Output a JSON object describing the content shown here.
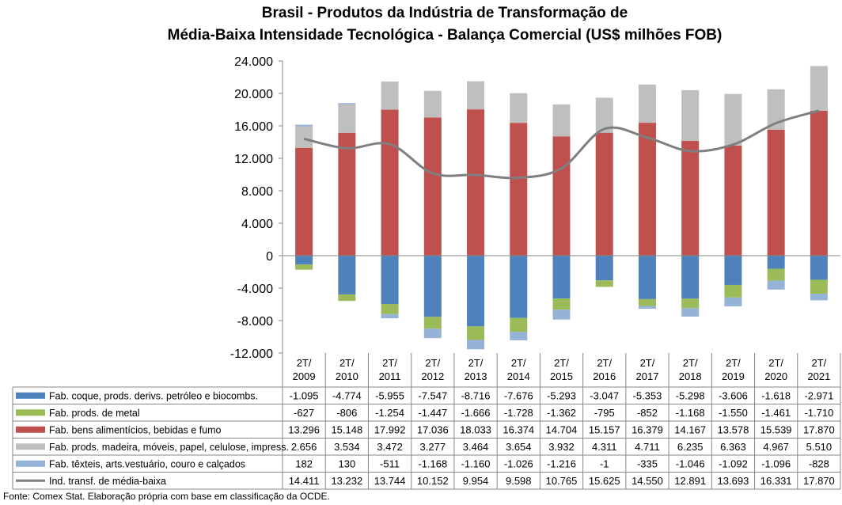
{
  "title_line1": "Brasil - Produtos da Indústria de Transformação de",
  "title_line2": "Média-Baixa Intensidade Tecnológica - Balança Comercial (US$ milhões FOB)",
  "source": "Fonte: Comex Stat. Elaboração própria com base em classificação da OCDE.",
  "chart_data": {
    "type": "bar",
    "stacked": true,
    "title": "Brasil - Produtos da Indústria de Transformação de Média-Baixa Intensidade Tecnológica - Balança Comercial (US$ milhões FOB)",
    "categories": [
      "2T/\n2009",
      "2T/\n2010",
      "2T/\n2011",
      "2T/\n2012",
      "2T/\n2013",
      "2T/\n2014",
      "2T/\n2015",
      "2T/\n2016",
      "2T/\n2017",
      "2T/\n2018",
      "2T/\n2019",
      "2T/\n2020",
      "2T/\n2021"
    ],
    "category_lines": [
      [
        "2T/",
        "2009"
      ],
      [
        "2T/",
        "2010"
      ],
      [
        "2T/",
        "2011"
      ],
      [
        "2T/",
        "2012"
      ],
      [
        "2T/",
        "2013"
      ],
      [
        "2T/",
        "2014"
      ],
      [
        "2T/",
        "2015"
      ],
      [
        "2T/",
        "2016"
      ],
      [
        "2T/",
        "2017"
      ],
      [
        "2T/",
        "2018"
      ],
      [
        "2T/",
        "2019"
      ],
      [
        "2T/",
        "2020"
      ],
      [
        "2T/",
        "2021"
      ]
    ],
    "ylim": [
      -12000,
      24000
    ],
    "yticks": [
      24000,
      20000,
      16000,
      12000,
      8000,
      4000,
      0,
      -4000,
      -8000,
      -12000
    ],
    "ytick_labels": [
      "24.000",
      "20.000",
      "16.000",
      "12.000",
      "8.000",
      "4.000",
      "0",
      "-4.000",
      "-8.000",
      "-12.000"
    ],
    "grid": false,
    "legend": "data-table-below",
    "series": [
      {
        "name": "Fab. coque, prods. derivs. petróleo e biocombs.",
        "kind": "bar",
        "color": "#4f81bd",
        "values": [
          -1095,
          -4774,
          -5955,
          -7547,
          -8716,
          -7676,
          -5293,
          -3047,
          -5353,
          -5298,
          -3606,
          -1618,
          -2971
        ],
        "labels": [
          "-1.095",
          "-4.774",
          "-5.955",
          "-7.547",
          "-8.716",
          "-7.676",
          "-5.293",
          "-3.047",
          "-5.353",
          "-5.298",
          "-3.606",
          "-1.618",
          "-2.971"
        ]
      },
      {
        "name": "Fab. prods. de metal",
        "kind": "bar",
        "color": "#9bbb59",
        "values": [
          -627,
          -806,
          -1254,
          -1447,
          -1666,
          -1728,
          -1362,
          -795,
          -852,
          -1168,
          -1550,
          -1461,
          -1710
        ],
        "labels": [
          "-627",
          "-806",
          "-1.254",
          "-1.447",
          "-1.666",
          "-1.728",
          "-1.362",
          "-795",
          "-852",
          "-1.168",
          "-1.550",
          "-1.461",
          "-1.710"
        ]
      },
      {
        "name": "Fab. bens alimentícios, bebidas e fumo",
        "kind": "bar",
        "color": "#c0504d",
        "values": [
          13296,
          15148,
          17992,
          17036,
          18033,
          16374,
          14704,
          15157,
          16379,
          14167,
          13578,
          15539,
          17870
        ],
        "labels": [
          "13.296",
          "15.148",
          "17.992",
          "17.036",
          "18.033",
          "16.374",
          "14.704",
          "15.157",
          "16.379",
          "14.167",
          "13.578",
          "15.539",
          "17.870"
        ]
      },
      {
        "name": "Fab. prods. madeira, móveis, papel, celulose, impress.",
        "kind": "bar",
        "color": "#bfbfbf",
        "values": [
          2656,
          3534,
          3472,
          3277,
          3464,
          3654,
          3932,
          4311,
          4711,
          6235,
          6363,
          4967,
          5510
        ],
        "labels": [
          "2.656",
          "3.534",
          "3.472",
          "3.277",
          "3.464",
          "3.654",
          "3.932",
          "4.311",
          "4.711",
          "6.235",
          "6.363",
          "4.967",
          "5.510"
        ]
      },
      {
        "name": "Fab. têxteis, arts.vestuário, couro e calçados",
        "kind": "bar",
        "color": "#95b3d7",
        "values": [
          182,
          130,
          -511,
          -1168,
          -1160,
          -1026,
          -1216,
          -1,
          -335,
          -1046,
          -1092,
          -1096,
          -828
        ],
        "labels": [
          "182",
          "130",
          "-511",
          "-1.168",
          "-1.160",
          "-1.026",
          "-1.216",
          "-1",
          "-335",
          "-1.046",
          "-1.092",
          "-1.096",
          "-828"
        ]
      },
      {
        "name": "Ind. transf. de média-baixa",
        "kind": "line",
        "color": "#7f7f7f",
        "values": [
          14411,
          13232,
          13744,
          10152,
          9954,
          9598,
          10765,
          15625,
          14550,
          12891,
          13693,
          16331,
          17870
        ],
        "labels": [
          "14.411",
          "13.232",
          "13.744",
          "10.152",
          "9.954",
          "9.598",
          "10.765",
          "15.625",
          "14.550",
          "12.891",
          "13.693",
          "16.331",
          "17.870"
        ]
      }
    ]
  }
}
